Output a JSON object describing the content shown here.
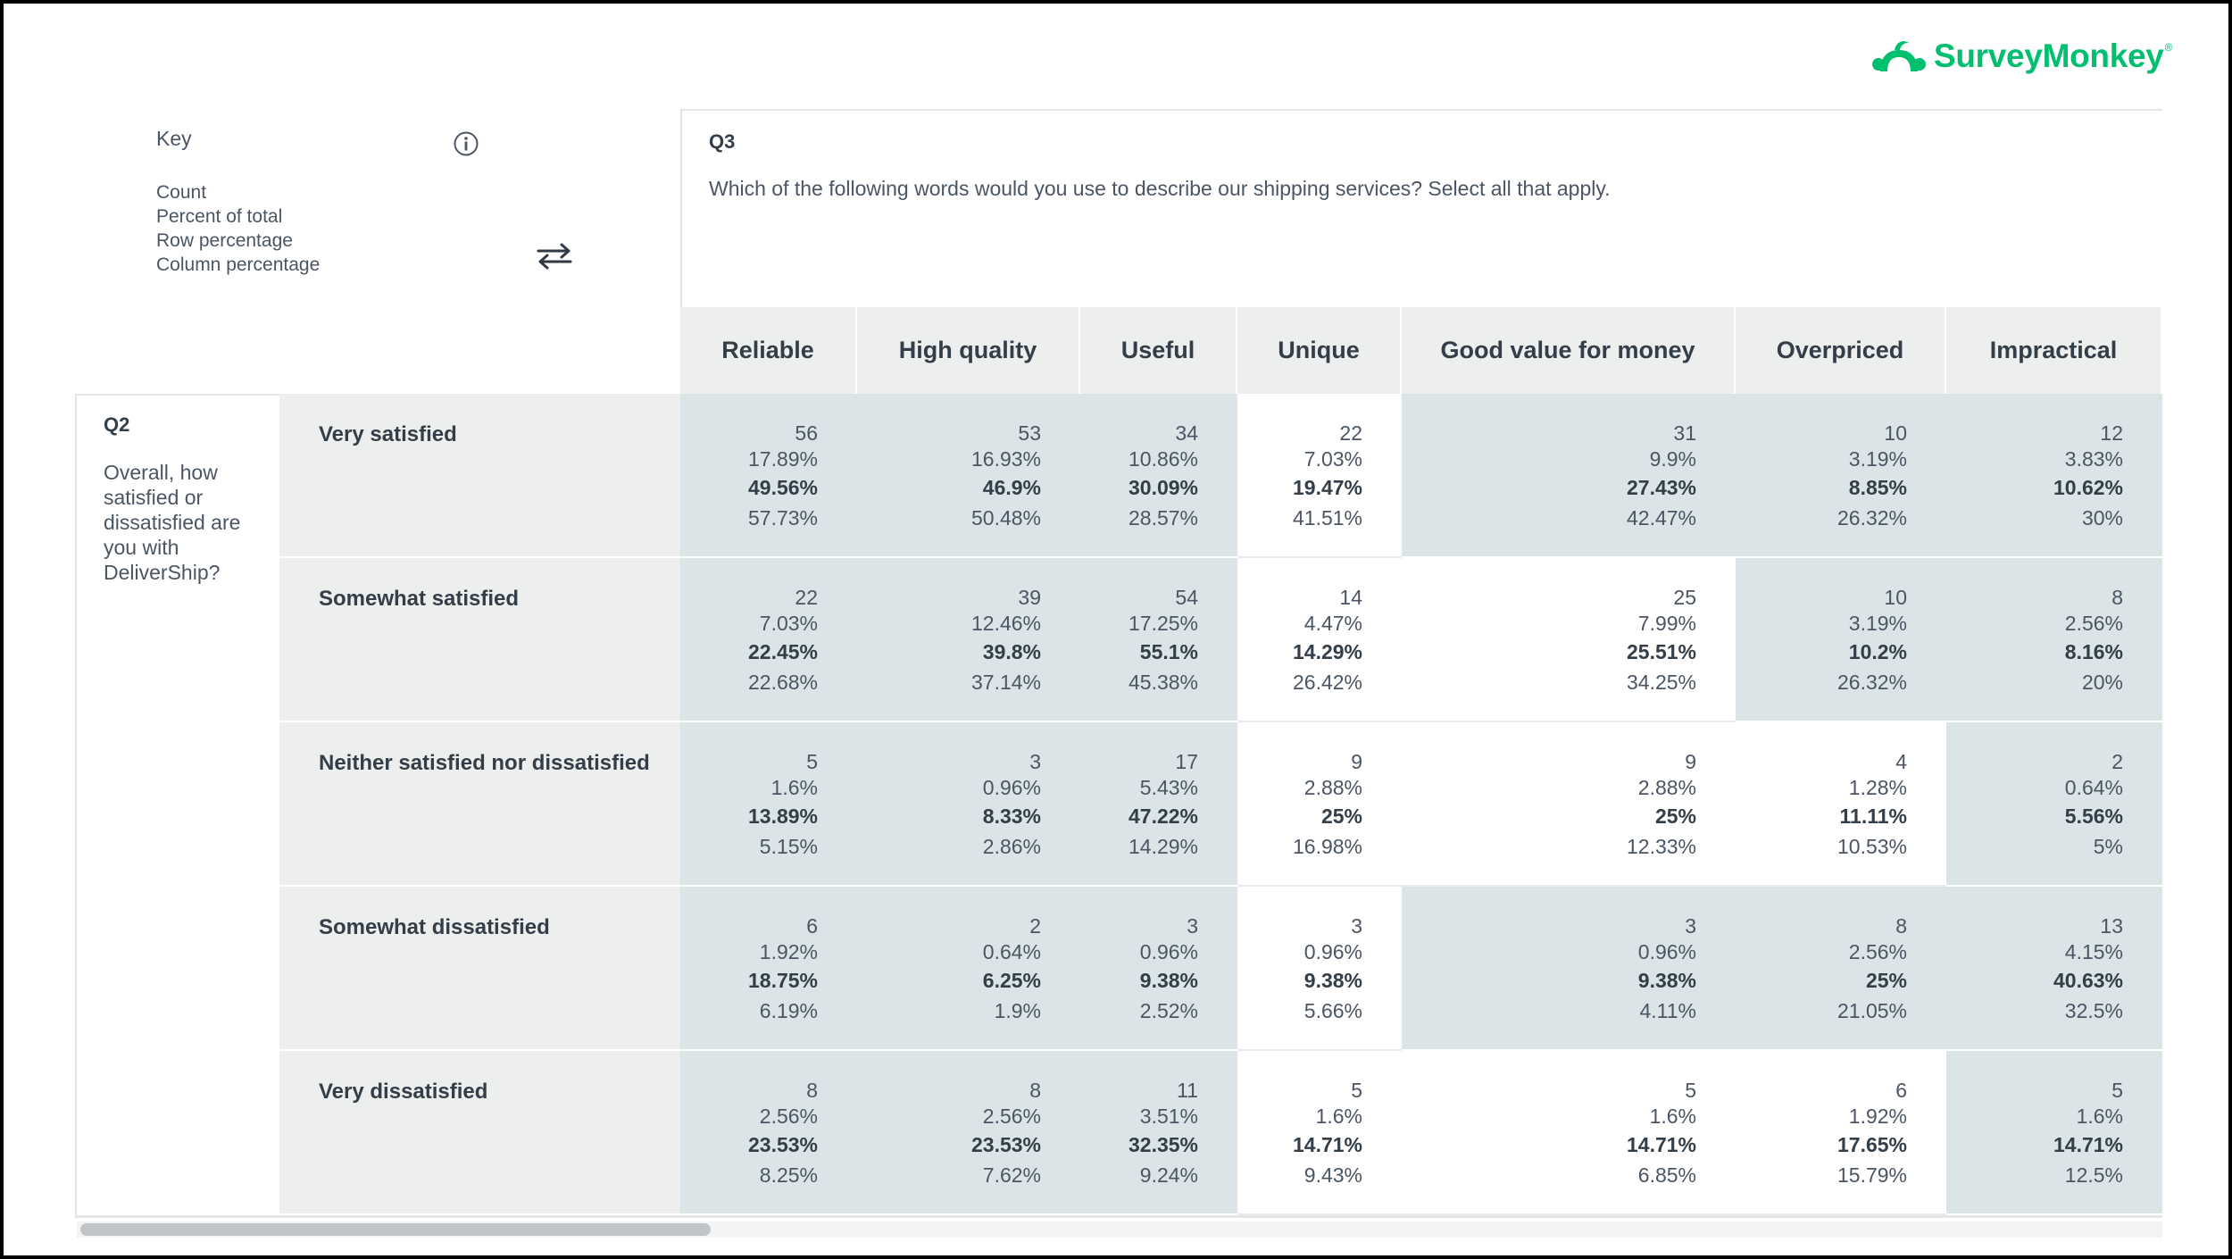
{
  "brand": {
    "logo_text": "SurveyMonkey",
    "logo_mark": "®",
    "brand_color": "#00bf6f"
  },
  "key": {
    "title": "Key",
    "items": [
      "Count",
      "Percent of total",
      "Row percentage",
      "Column percentage"
    ],
    "info_icon": "info-circle-icon",
    "swap_icon": "swap-arrows-icon"
  },
  "question_columns": {
    "label": "Q3",
    "text": "Which of the following words would you use to describe our shipping services? Select all that apply."
  },
  "question_rows": {
    "label": "Q2",
    "text": "Overall, how satisfied or dissatisfied are you with DeliverShip?"
  },
  "columns": [
    "Reliable",
    "High quality",
    "Useful",
    "Unique",
    "Good value for money",
    "Overpriced",
    "Impractical"
  ],
  "rows": [
    {
      "label": "Very satisfied",
      "cells": [
        {
          "count": "56",
          "total": "17.89%",
          "row": "49.56%",
          "col": "57.73%",
          "highlight": true
        },
        {
          "count": "53",
          "total": "16.93%",
          "row": "46.9%",
          "col": "50.48%",
          "highlight": true
        },
        {
          "count": "34",
          "total": "10.86%",
          "row": "30.09%",
          "col": "28.57%",
          "highlight": true
        },
        {
          "count": "22",
          "total": "7.03%",
          "row": "19.47%",
          "col": "41.51%",
          "highlight": false
        },
        {
          "count": "31",
          "total": "9.9%",
          "row": "27.43%",
          "col": "42.47%",
          "highlight": true
        },
        {
          "count": "10",
          "total": "3.19%",
          "row": "8.85%",
          "col": "26.32%",
          "highlight": true
        },
        {
          "count": "12",
          "total": "3.83%",
          "row": "10.62%",
          "col": "30%",
          "highlight": true
        }
      ]
    },
    {
      "label": "Somewhat satisfied",
      "cells": [
        {
          "count": "22",
          "total": "7.03%",
          "row": "22.45%",
          "col": "22.68%",
          "highlight": true
        },
        {
          "count": "39",
          "total": "12.46%",
          "row": "39.8%",
          "col": "37.14%",
          "highlight": true
        },
        {
          "count": "54",
          "total": "17.25%",
          "row": "55.1%",
          "col": "45.38%",
          "highlight": true
        },
        {
          "count": "14",
          "total": "4.47%",
          "row": "14.29%",
          "col": "26.42%",
          "highlight": false
        },
        {
          "count": "25",
          "total": "7.99%",
          "row": "25.51%",
          "col": "34.25%",
          "highlight": false
        },
        {
          "count": "10",
          "total": "3.19%",
          "row": "10.2%",
          "col": "26.32%",
          "highlight": true
        },
        {
          "count": "8",
          "total": "2.56%",
          "row": "8.16%",
          "col": "20%",
          "highlight": true
        }
      ]
    },
    {
      "label": "Neither satisfied nor dissatisfied",
      "cells": [
        {
          "count": "5",
          "total": "1.6%",
          "row": "13.89%",
          "col": "5.15%",
          "highlight": true
        },
        {
          "count": "3",
          "total": "0.96%",
          "row": "8.33%",
          "col": "2.86%",
          "highlight": true
        },
        {
          "count": "17",
          "total": "5.43%",
          "row": "47.22%",
          "col": "14.29%",
          "highlight": true
        },
        {
          "count": "9",
          "total": "2.88%",
          "row": "25%",
          "col": "16.98%",
          "highlight": false
        },
        {
          "count": "9",
          "total": "2.88%",
          "row": "25%",
          "col": "12.33%",
          "highlight": false
        },
        {
          "count": "4",
          "total": "1.28%",
          "row": "11.11%",
          "col": "10.53%",
          "highlight": false
        },
        {
          "count": "2",
          "total": "0.64%",
          "row": "5.56%",
          "col": "5%",
          "highlight": true
        }
      ]
    },
    {
      "label": "Somewhat dissatisfied",
      "cells": [
        {
          "count": "6",
          "total": "1.92%",
          "row": "18.75%",
          "col": "6.19%",
          "highlight": true
        },
        {
          "count": "2",
          "total": "0.64%",
          "row": "6.25%",
          "col": "1.9%",
          "highlight": true
        },
        {
          "count": "3",
          "total": "0.96%",
          "row": "9.38%",
          "col": "2.52%",
          "highlight": true
        },
        {
          "count": "3",
          "total": "0.96%",
          "row": "9.38%",
          "col": "5.66%",
          "highlight": false
        },
        {
          "count": "3",
          "total": "0.96%",
          "row": "9.38%",
          "col": "4.11%",
          "highlight": true
        },
        {
          "count": "8",
          "total": "2.56%",
          "row": "25%",
          "col": "21.05%",
          "highlight": true
        },
        {
          "count": "13",
          "total": "4.15%",
          "row": "40.63%",
          "col": "32.5%",
          "highlight": true
        }
      ]
    },
    {
      "label": "Very dissatisfied",
      "cells": [
        {
          "count": "8",
          "total": "2.56%",
          "row": "23.53%",
          "col": "8.25%",
          "highlight": true
        },
        {
          "count": "8",
          "total": "2.56%",
          "row": "23.53%",
          "col": "7.62%",
          "highlight": true
        },
        {
          "count": "11",
          "total": "3.51%",
          "row": "32.35%",
          "col": "9.24%",
          "highlight": true
        },
        {
          "count": "5",
          "total": "1.6%",
          "row": "14.71%",
          "col": "9.43%",
          "highlight": false
        },
        {
          "count": "5",
          "total": "1.6%",
          "row": "14.71%",
          "col": "6.85%",
          "highlight": false
        },
        {
          "count": "6",
          "total": "1.92%",
          "row": "17.65%",
          "col": "15.79%",
          "highlight": false
        },
        {
          "count": "5",
          "total": "1.6%",
          "row": "14.71%",
          "col": "12.5%",
          "highlight": true
        }
      ]
    }
  ],
  "colors": {
    "highlight_cell": "#dbe5e8",
    "header_bg": "#edeeee",
    "text": "#333e48"
  }
}
